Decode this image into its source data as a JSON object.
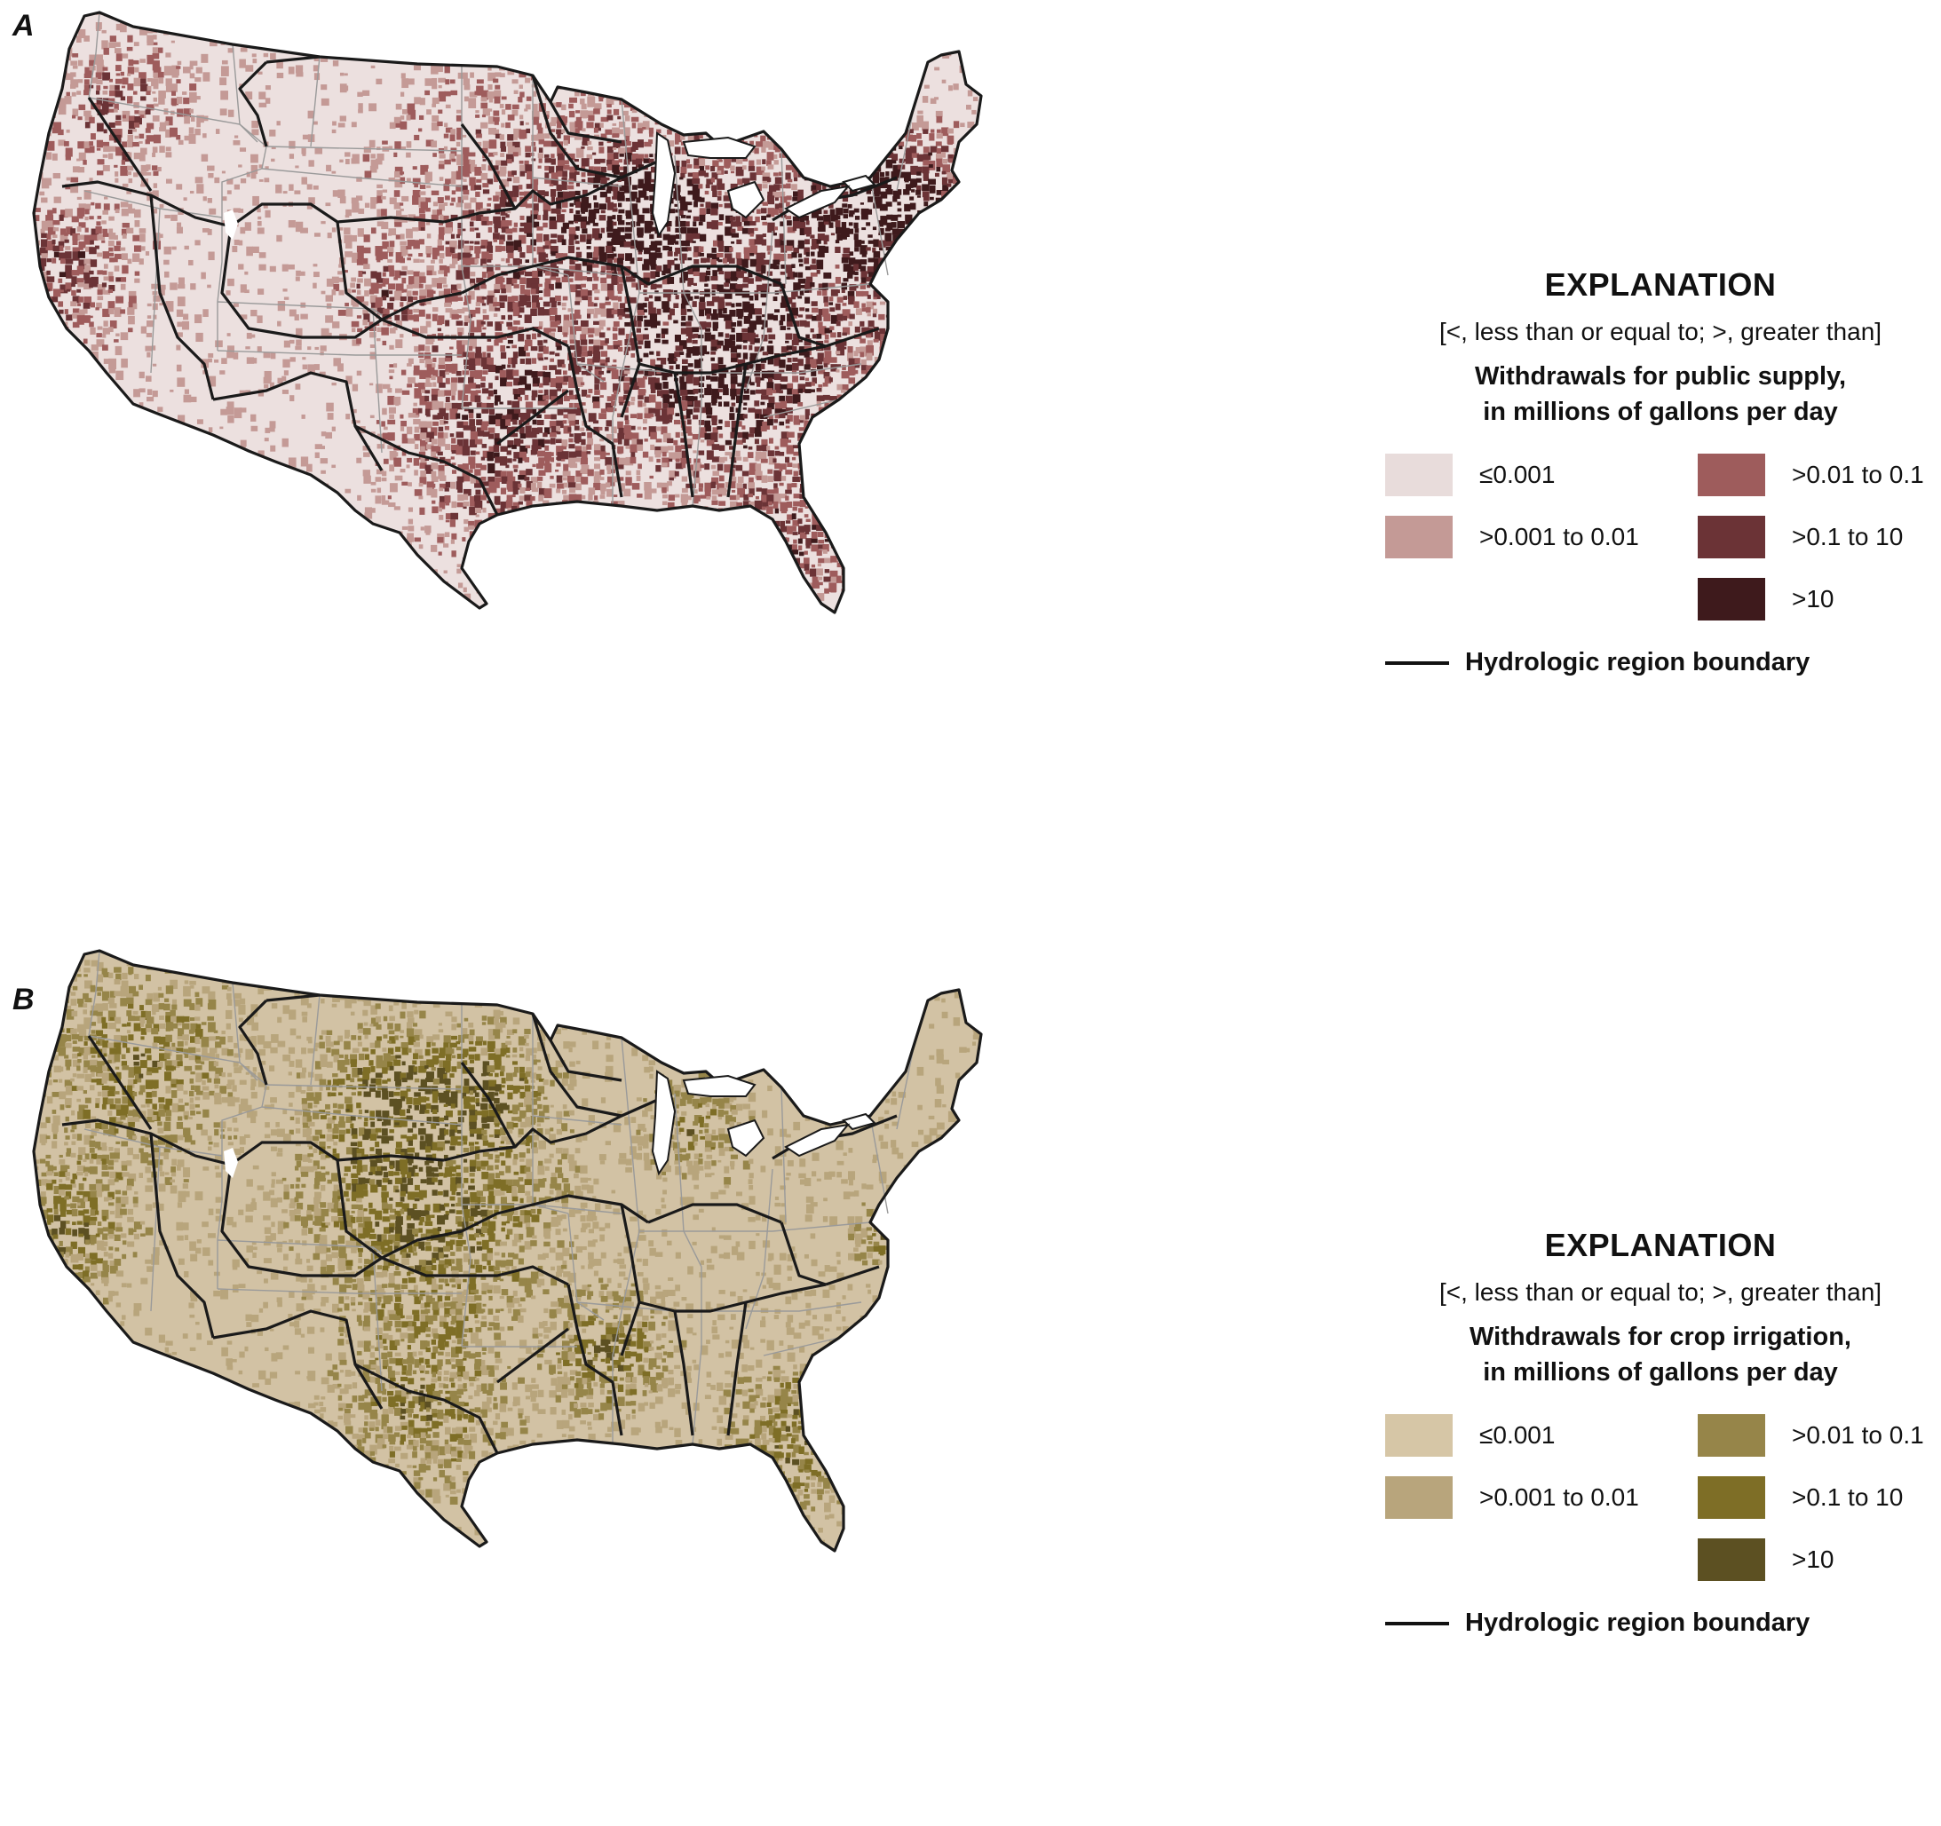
{
  "panels": [
    {
      "letter": "A",
      "map_colors": {
        "background": "#ece0df",
        "boundary": "#1a1a1a",
        "state_lines": "#9a9a9a"
      },
      "legend": {
        "title": "EXPLANATION",
        "note": "[<, less than or equal to; >, greater than]",
        "heading_line1": "Withdrawals for public supply,",
        "heading_line2": "in millions of gallons per day",
        "classes": [
          {
            "label": "≤0.001",
            "color": "#e8dcdb"
          },
          {
            "label": ">0.001 to 0.01",
            "color": "#c49a96"
          },
          {
            "label": ">0.01 to 0.1",
            "color": "#9e5c5c"
          },
          {
            "label": ">0.1 to 10",
            "color": "#6b3336"
          },
          {
            "label": ">10",
            "color": "#3e1a1c"
          }
        ],
        "boundary_label": "Hydrologic region boundary"
      }
    },
    {
      "letter": "B",
      "map_colors": {
        "background": "#d2c2a4",
        "boundary": "#1a1a1a",
        "state_lines": "#9a9a9a"
      },
      "legend": {
        "title": "EXPLANATION",
        "note": "[<, less than or equal to; >, greater than]",
        "heading_line1": "Withdrawals for crop irrigation,",
        "heading_line2": "in millions of gallons per day",
        "classes": [
          {
            "label": "≤0.001",
            "color": "#d6c6a6"
          },
          {
            "label": ">0.001 to 0.01",
            "color": "#b8a57c"
          },
          {
            "label": ">0.01 to 0.1",
            "color": "#968549"
          },
          {
            "label": ">0.1 to 10",
            "color": "#7e6e26"
          },
          {
            "label": ">10",
            "color": "#5c5022"
          }
        ],
        "boundary_label": "Hydrologic region boundary"
      }
    }
  ]
}
